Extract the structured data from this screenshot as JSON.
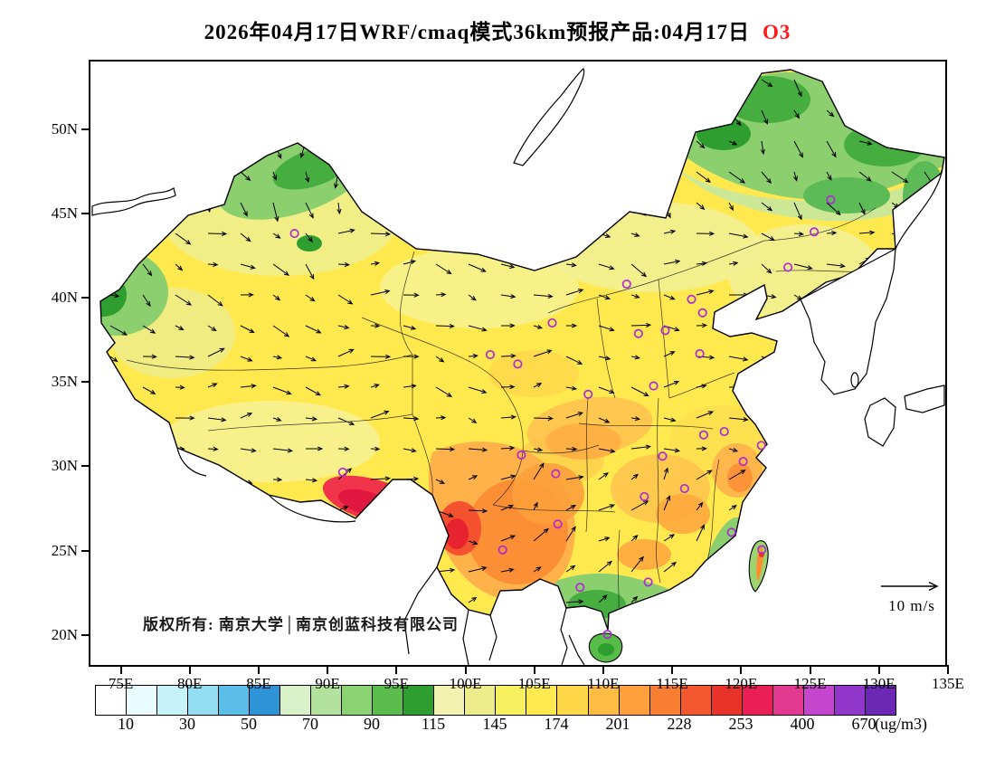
{
  "title": {
    "prefix": "2026年04月17日WRF/cmaq模式36km预报产品:04月17日",
    "species": "O3",
    "species_color": "#ff1a1a"
  },
  "footer": {
    "copyright": "版权所有: 南京大学│南京创蓝科技有限公司"
  },
  "wind_legend": {
    "label": "10 m/s"
  },
  "axes": {
    "lat": {
      "labels": [
        "50N",
        "45N",
        "40N",
        "35N",
        "30N",
        "25N",
        "20N"
      ],
      "values": [
        50,
        45,
        40,
        35,
        30,
        25,
        20
      ]
    },
    "lon": {
      "labels": [
        "75E",
        "80E",
        "85E",
        "90E",
        "95E",
        "100E",
        "105E",
        "110E",
        "115E",
        "120E",
        "125E",
        "130E",
        "135E"
      ],
      "values": [
        75,
        80,
        85,
        90,
        95,
        100,
        105,
        110,
        115,
        120,
        125,
        130,
        135
      ]
    }
  },
  "colorbar": {
    "unit_label": "(ug/m3)",
    "tick_labels": [
      "10",
      "30",
      "50",
      "70",
      "90",
      "115",
      "145",
      "174",
      "201",
      "228",
      "253",
      "400",
      "670"
    ],
    "colors": [
      "#FFFFFF",
      "#E9FCFF",
      "#C6F3FA",
      "#93DEF2",
      "#5ABEE9",
      "#2F93D8",
      "#D9F1C8",
      "#B2E29B",
      "#8AD272",
      "#5ABC4B",
      "#2F9E30",
      "#F2F2B0",
      "#EDEC8B",
      "#F7F05F",
      "#FFE94F",
      "#FFD84A",
      "#FFBC43",
      "#FFA03C",
      "#F87F32",
      "#F2592E",
      "#E93229",
      "#EA1F55",
      "#E23A90",
      "#C346CC",
      "#9237CC",
      "#6A28B4"
    ]
  },
  "chart_data": {
    "type": "heatmap",
    "title": "2026年04月17日WRF/cmaq模式36km预报产品:04月17日 O3",
    "variable": "O3 surface concentration forecast with wind vectors",
    "model": "WRF/cmaq 36km",
    "valid_date_label": "04月17日",
    "units": "ug/m3",
    "levels": [
      10,
      30,
      50,
      70,
      90,
      115,
      145,
      174,
      201,
      228,
      253,
      400,
      670
    ],
    "lon_range": [
      72.8,
      135
    ],
    "lat_range": [
      18.2,
      54
    ],
    "grid": false,
    "legend_position": "bottom colorbar",
    "wind_reference_ms": 10,
    "region_values": [
      {
        "region": "Northeast China / northern Xinjiang (green)",
        "o3_ugm3": "70-115"
      },
      {
        "region": "Most of northern and central China (yellow)",
        "o3_ugm3": "115-174"
      },
      {
        "region": "Sichuan-Yunnan-Guizhou southwest (orange)",
        "o3_ugm3": "174-228"
      },
      {
        "region": "Southeast Tibet / northwest Yunnan (red)",
        "o3_ugm3": "228-253"
      },
      {
        "region": "Southern coast, Hainan, Fujian coast (green)",
        "o3_ugm3": "70-115"
      }
    ],
    "city_markers_lonlat": [
      [
        87.6,
        43.8
      ],
      [
        126.5,
        45.8
      ],
      [
        125.3,
        43.9
      ],
      [
        123.4,
        41.8
      ],
      [
        116.4,
        39.9
      ],
      [
        117.2,
        39.1
      ],
      [
        114.5,
        38.05
      ],
      [
        112.55,
        37.87
      ],
      [
        111.7,
        40.8
      ],
      [
        106.3,
        38.5
      ],
      [
        103.8,
        36.06
      ],
      [
        101.8,
        36.62
      ],
      [
        108.9,
        34.27
      ],
      [
        113.65,
        34.76
      ],
      [
        117.0,
        36.67
      ],
      [
        117.28,
        31.86
      ],
      [
        118.78,
        32.06
      ],
      [
        121.47,
        31.23
      ],
      [
        120.15,
        30.28
      ],
      [
        114.3,
        30.6
      ],
      [
        112.98,
        28.2
      ],
      [
        115.9,
        28.68
      ],
      [
        119.3,
        26.08
      ],
      [
        113.26,
        23.13
      ],
      [
        108.32,
        22.82
      ],
      [
        110.3,
        20.03
      ],
      [
        106.7,
        26.57
      ],
      [
        102.7,
        25.04
      ],
      [
        104.06,
        30.67
      ],
      [
        106.55,
        29.56
      ],
      [
        91.1,
        29.65
      ],
      [
        121.5,
        25.05
      ]
    ]
  }
}
